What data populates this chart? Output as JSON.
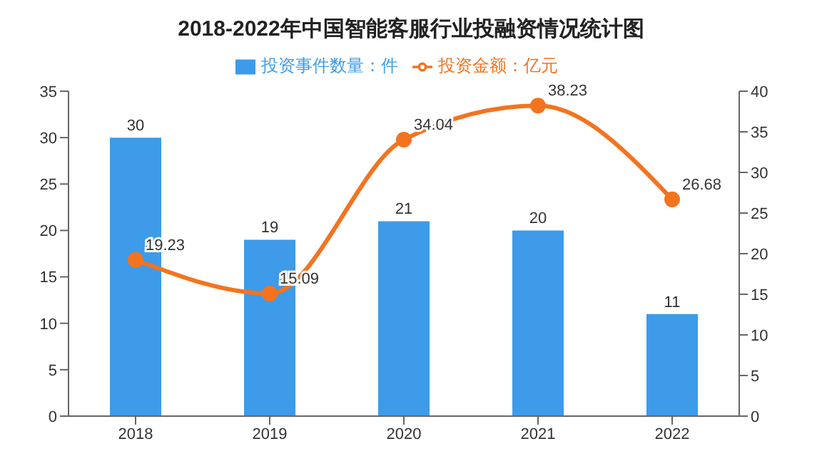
{
  "chart_data": {
    "type": "bar",
    "title": "2018-2022年中国智能客服行业投融资情况统计图",
    "categories": [
      "2018",
      "2019",
      "2020",
      "2021",
      "2022"
    ],
    "series": [
      {
        "name": "投资事件数量：件",
        "color": "#3d9be9",
        "values": [
          30,
          19,
          21,
          20,
          11
        ]
      },
      {
        "name": "投资金额：亿元",
        "type": "line",
        "axis": "y2",
        "color": "#f4731f",
        "values": [
          19.23,
          15.09,
          34.04,
          38.23,
          26.68
        ],
        "marker": "circle"
      }
    ],
    "ylim": [
      0,
      35
    ],
    "yticks": [
      0,
      5,
      10,
      15,
      20,
      25,
      30,
      35
    ],
    "y2lim": [
      0,
      40
    ],
    "y2ticks": [
      0,
      5,
      10,
      15,
      20,
      25,
      30,
      35,
      40
    ],
    "data_labels": true,
    "legend": "top",
    "grid": false
  }
}
